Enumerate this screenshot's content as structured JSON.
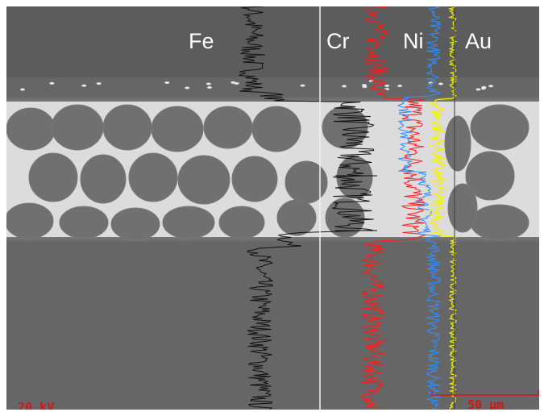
{
  "micrograph": {
    "elements": [
      {
        "symbol": "Fe",
        "color": "#111111"
      },
      {
        "symbol": "Cr",
        "color": "#ff1a1a"
      },
      {
        "symbol": "Ni",
        "color": "#2f8fff"
      },
      {
        "symbol": "Au",
        "color": "#f3f300"
      }
    ],
    "voltage_text": "20 kV",
    "scale_text": "50 µm",
    "overlay_color": "#d01818",
    "colors": {
      "matrix": "#666666",
      "upper_region": "#5c5c5c",
      "joint_zone": "#8a8a8a",
      "grain": "#707070",
      "liquid_phase": "#dcdcdc"
    }
  }
}
